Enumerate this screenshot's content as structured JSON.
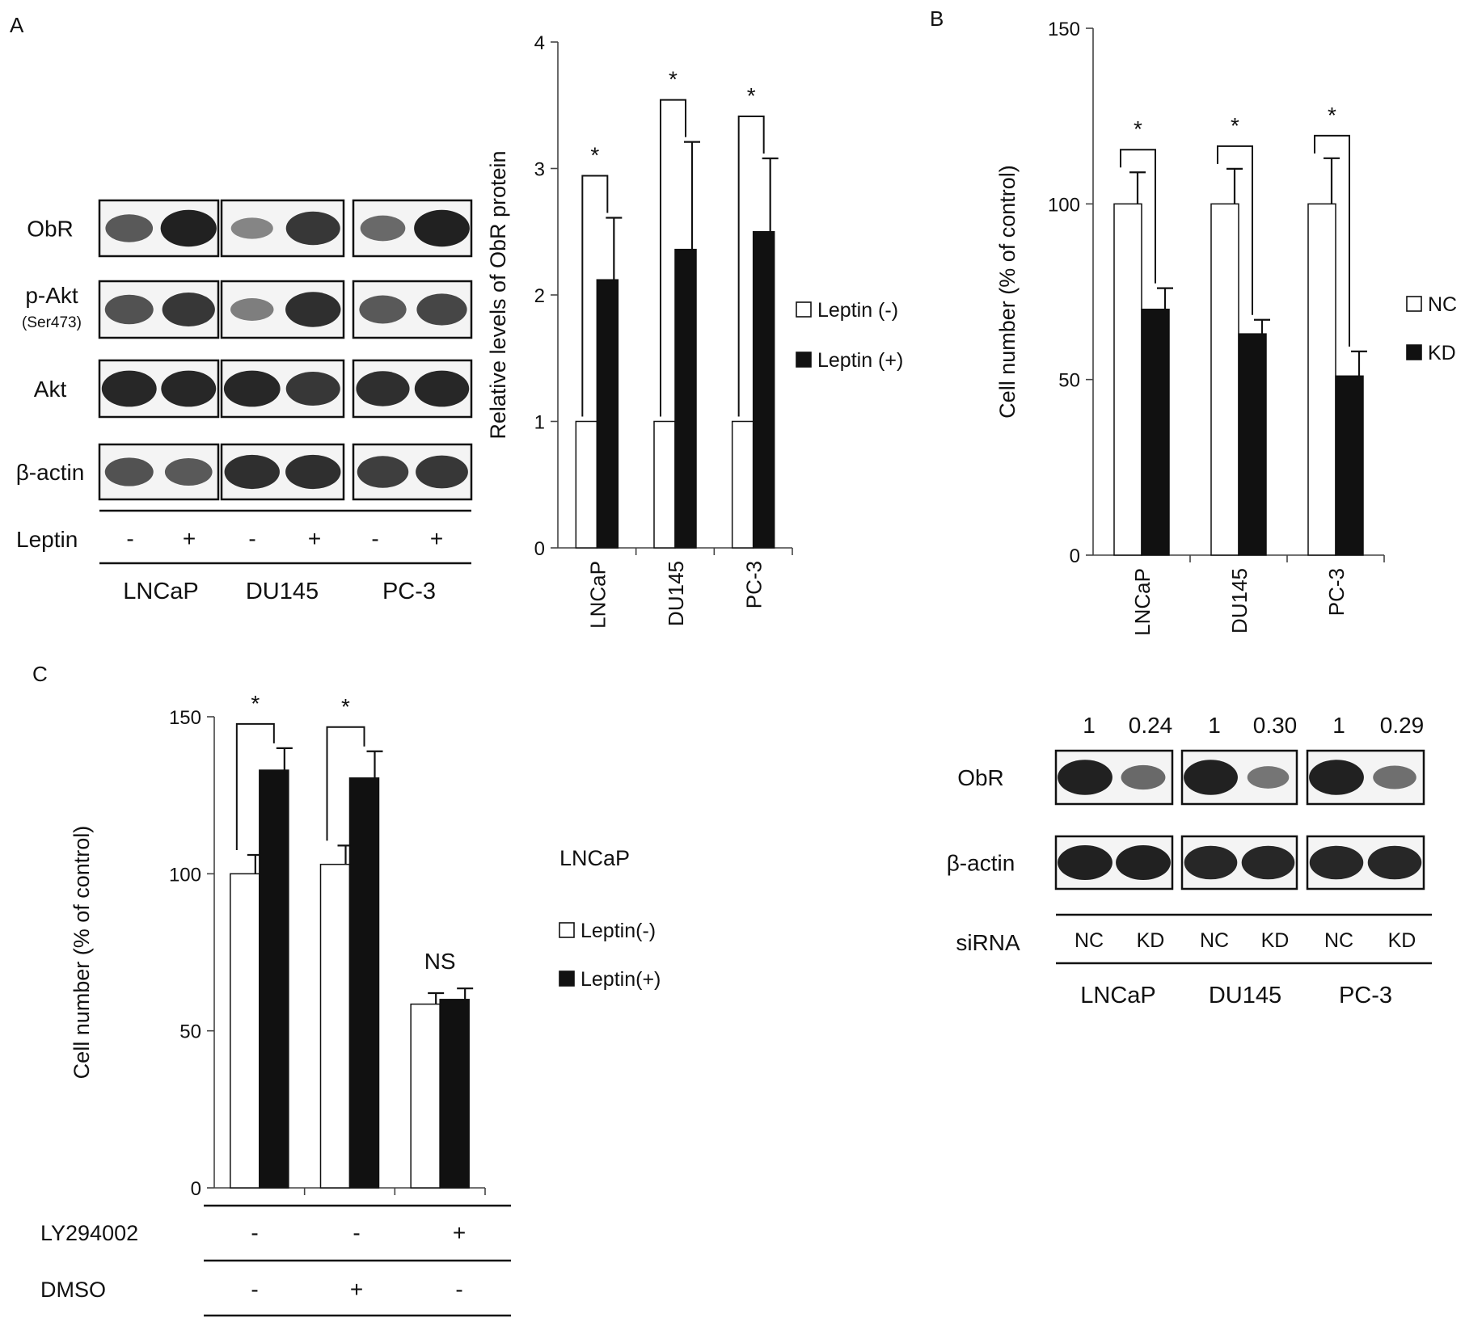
{
  "panel_labels": {
    "a": "A",
    "b": "B",
    "c": "C"
  },
  "colors": {
    "open_bar": "#ffffff",
    "filled_bar": "#111111",
    "outline": "#111111",
    "band": "#1a1a1a",
    "membrane": "#f4f4f4"
  },
  "panel_a_blot": {
    "rows": [
      {
        "label": "ObR",
        "sublabel": ""
      },
      {
        "label": "p-Akt",
        "sublabel": "(Ser473)"
      },
      {
        "label": "Akt",
        "sublabel": ""
      },
      {
        "label": "β-actin",
        "sublabel": ""
      }
    ],
    "treatment_label": "Leptin",
    "treatment_signs": [
      "-",
      "+",
      "-",
      "+",
      "-",
      "+"
    ],
    "cell_lines": [
      "LNCaP",
      "DU145",
      "PC-3"
    ],
    "band_intensity": [
      [
        0.55,
        0.95,
        0.25,
        0.8,
        0.45,
        0.95
      ],
      [
        0.6,
        0.8,
        0.3,
        0.85,
        0.55,
        0.7
      ],
      [
        0.9,
        0.9,
        0.9,
        0.8,
        0.85,
        0.9
      ],
      [
        0.6,
        0.55,
        0.85,
        0.85,
        0.75,
        0.8
      ]
    ]
  },
  "panel_b_blot": {
    "ratios": [
      "1",
      "0.24",
      "1",
      "0.30",
      "1",
      "0.29"
    ],
    "rows": [
      {
        "label": "ObR"
      },
      {
        "label": "β-actin"
      }
    ],
    "treatment_label": "siRNA",
    "lane_labels": [
      "NC",
      "KD",
      "NC",
      "KD",
      "NC",
      "KD"
    ],
    "cell_lines": [
      "LNCaP",
      "DU145",
      "PC-3"
    ],
    "band_intensity": [
      [
        0.95,
        0.45,
        0.95,
        0.35,
        0.95,
        0.4
      ],
      [
        0.95,
        0.95,
        0.9,
        0.9,
        0.9,
        0.9
      ]
    ]
  },
  "panel_c_conditions": [
    {
      "label": "LY294002",
      "signs": [
        "-",
        "-",
        "+"
      ]
    },
    {
      "label": "DMSO",
      "signs": [
        "-",
        "+",
        "-"
      ]
    }
  ],
  "chart_data": [
    {
      "id": "A",
      "type": "bar",
      "ylabel": "Relative levels of ObR protein",
      "xlabel": "",
      "ylim": [
        0,
        4
      ],
      "yticks": [
        0,
        1,
        2,
        3,
        4
      ],
      "categories": [
        "LNCaP",
        "DU145",
        "PC-3"
      ],
      "category_label_rotation": "vertical",
      "series": [
        {
          "name": "Leptin (-)",
          "fill": "open",
          "values": [
            1,
            1,
            1
          ],
          "errors": [
            0,
            0,
            0
          ]
        },
        {
          "name": "Leptin (+)",
          "fill": "filled",
          "values": [
            2.12,
            2.36,
            2.5
          ],
          "errors": [
            0.49,
            0.85,
            0.58
          ]
        }
      ],
      "significance": [
        "*",
        "*",
        "*"
      ],
      "legend": "right"
    },
    {
      "id": "B",
      "type": "bar",
      "ylabel": "Cell number (% of control)",
      "xlabel": "",
      "ylim": [
        0,
        150
      ],
      "yticks": [
        0,
        50,
        100,
        150
      ],
      "categories": [
        "LNCaP",
        "DU145",
        "PC-3"
      ],
      "category_label_rotation": "vertical",
      "series": [
        {
          "name": "NC",
          "fill": "open",
          "values": [
            100,
            100,
            100
          ],
          "errors": [
            9,
            10,
            13
          ]
        },
        {
          "name": "KD",
          "fill": "filled",
          "values": [
            70,
            63,
            51
          ],
          "errors": [
            6,
            4,
            7
          ]
        }
      ],
      "significance": [
        "*",
        "*",
        "*"
      ],
      "legend": "right"
    },
    {
      "id": "C",
      "type": "bar",
      "ylabel": "Cell number (% of control)",
      "xlabel": "",
      "ylim": [
        0,
        150
      ],
      "yticks": [
        0,
        50,
        100,
        150
      ],
      "categories": [
        "",
        "",
        ""
      ],
      "legend_title": "LNCaP",
      "series": [
        {
          "name": "Leptin(-)",
          "fill": "open",
          "values": [
            100,
            103,
            58.5
          ],
          "errors": [
            6,
            6,
            3.5
          ]
        },
        {
          "name": "Leptin(+)",
          "fill": "filled",
          "values": [
            133,
            130.5,
            60
          ],
          "errors": [
            7,
            8.5,
            3.5
          ]
        }
      ],
      "significance": [
        "*",
        "*",
        "NS"
      ],
      "legend": "right"
    }
  ]
}
